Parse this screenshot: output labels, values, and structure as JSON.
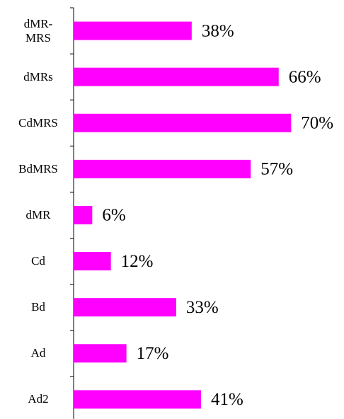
{
  "chart_data": {
    "type": "bar",
    "orientation": "horizontal",
    "categories": [
      "dMR-MRS",
      "dMRs",
      "CdMRS",
      "BdMRS",
      "dMR",
      "Cd",
      "Bd",
      "Ad",
      "Ad2"
    ],
    "values": [
      38,
      66,
      70,
      57,
      6,
      12,
      33,
      17,
      41
    ],
    "value_labels": [
      "38%",
      "66%",
      "70%",
      "57%",
      "6%",
      "12%",
      "33%",
      "17%",
      "41%"
    ],
    "color": "#ff00ff"
  }
}
